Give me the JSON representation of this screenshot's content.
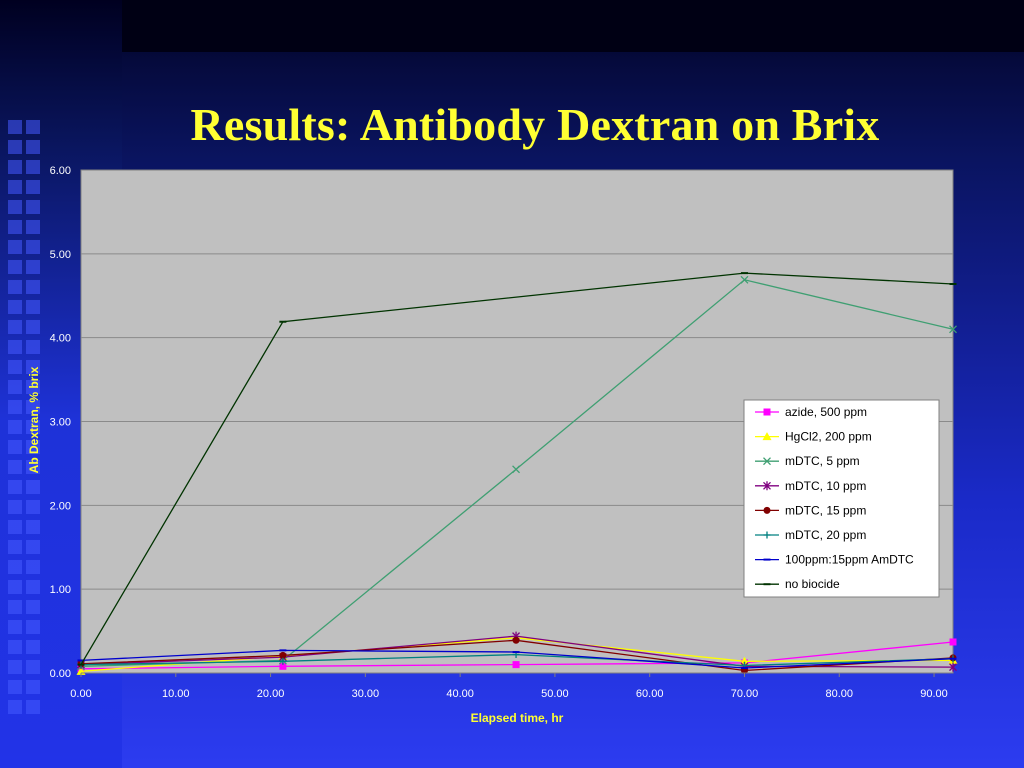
{
  "slide": {
    "title": "Results: Antibody Dextran on Brix"
  },
  "chart_data": {
    "type": "line",
    "xlabel": "Elapsed time, hr",
    "ylabel": "Ab Dextran, % brix",
    "xlim": [
      0,
      92
    ],
    "ylim": [
      0,
      6
    ],
    "xticks": [
      "0.00",
      "10.00",
      "20.00",
      "30.00",
      "40.00",
      "50.00",
      "60.00",
      "70.00",
      "80.00",
      "90.00"
    ],
    "yticks": [
      "0.00",
      "1.00",
      "2.00",
      "3.00",
      "4.00",
      "5.00",
      "6.00"
    ],
    "grid": "horizontal",
    "legend_position": "right",
    "series": [
      {
        "name": "azide, 500 ppm",
        "color": "#ff00ff",
        "marker": "square",
        "x": [
          0,
          21.3,
          45.9,
          70.0,
          92.0
        ],
        "y": [
          0.05,
          0.08,
          0.1,
          0.12,
          0.37
        ]
      },
      {
        "name": "HgCl2, 200 ppm",
        "color": "#ffff00",
        "marker": "triangle",
        "x": [
          0,
          21.3,
          45.9,
          70.0,
          92.0
        ],
        "y": [
          0.02,
          0.2,
          0.42,
          0.14,
          0.15
        ]
      },
      {
        "name": "mDTC, 5 ppm",
        "color": "#3f9f72",
        "marker": "x",
        "x": [
          0,
          21.3,
          45.9,
          70.0,
          92.0
        ],
        "y": [
          0.08,
          0.15,
          2.43,
          4.69,
          4.1
        ]
      },
      {
        "name": "mDTC, 10 ppm",
        "color": "#800080",
        "marker": "star",
        "x": [
          0,
          21.3,
          45.9,
          70.0,
          92.0
        ],
        "y": [
          0.1,
          0.19,
          0.44,
          0.08,
          0.07
        ]
      },
      {
        "name": "mDTC, 15 ppm",
        "color": "#800000",
        "marker": "circle",
        "x": [
          0,
          21.3,
          45.9,
          70.0,
          92.0
        ],
        "y": [
          0.11,
          0.21,
          0.39,
          0.03,
          0.18
        ]
      },
      {
        "name": "mDTC, 20 ppm",
        "color": "#008080",
        "marker": "plus",
        "x": [
          0,
          21.3,
          45.9,
          70.0,
          92.0
        ],
        "y": [
          0.1,
          0.14,
          0.22,
          0.09,
          0.17
        ]
      },
      {
        "name": "100ppm:15ppm AmDTC",
        "color": "#0000cc",
        "marker": "dash",
        "x": [
          0,
          21.3,
          45.9,
          70.0,
          92.0
        ],
        "y": [
          0.15,
          0.27,
          0.25,
          0.06,
          0.17
        ]
      },
      {
        "name": "no biocide",
        "color": "#003300",
        "marker": "dash",
        "x": [
          0,
          21.3,
          70.0,
          92.0
        ],
        "y": [
          0.1,
          4.19,
          4.77,
          4.64
        ]
      }
    ]
  }
}
